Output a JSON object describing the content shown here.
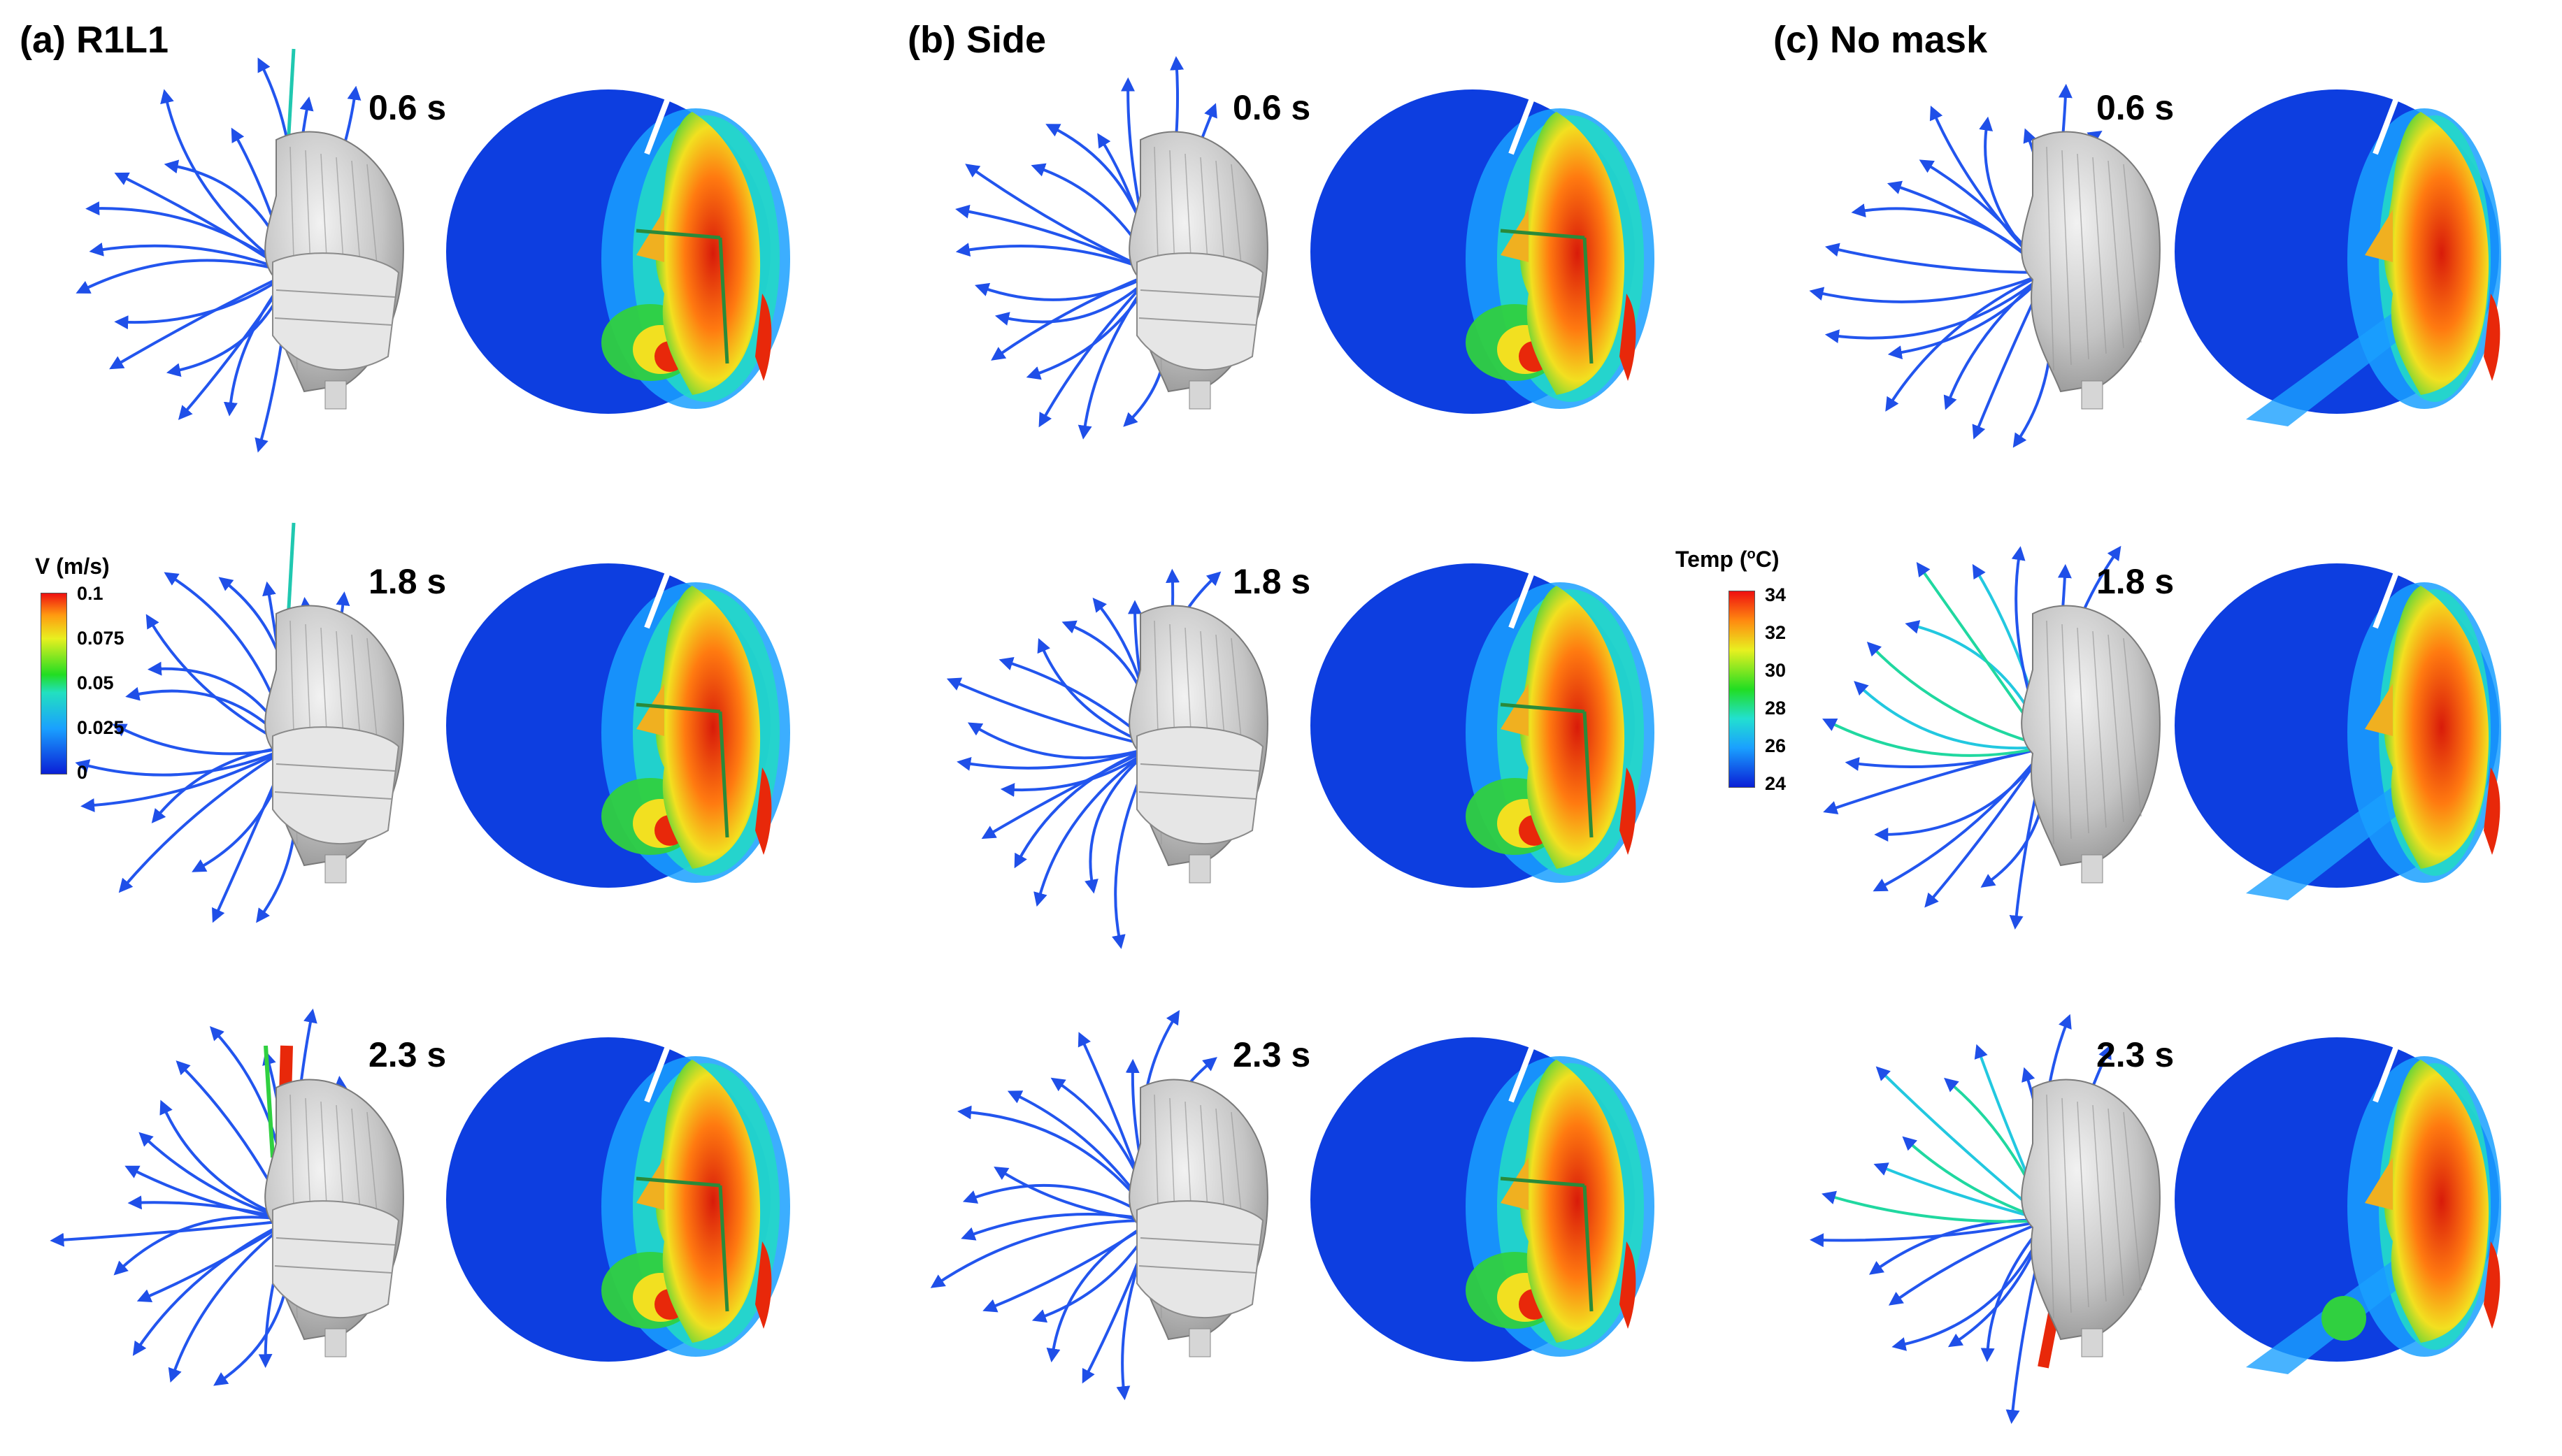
{
  "panels": [
    {
      "title": "(a) R1L1"
    },
    {
      "title": "(b) Side"
    },
    {
      "title": "(c) No mask"
    }
  ],
  "times": [
    "0.6 s",
    "1.8 s",
    "2.3 s"
  ],
  "velocity_colorbar": {
    "title": "V (m/s)",
    "ticks": [
      "0.1",
      "0.075",
      "0.05",
      "0.025",
      "0"
    ]
  },
  "temperature_colorbar": {
    "title_prefix": "Temp (",
    "title_sup": "o",
    "title_suffix": "C)",
    "ticks": [
      "34",
      "32",
      "30",
      "28",
      "26",
      "24"
    ]
  },
  "colors": {
    "background": "#0d3ee0",
    "stream": "#2255ee",
    "face": "#bcbcbc",
    "hot": "#e8280a"
  }
}
